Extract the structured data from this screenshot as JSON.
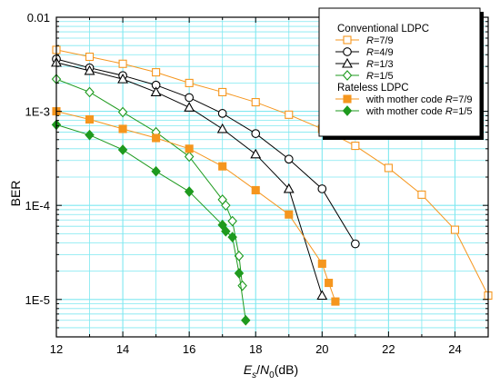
{
  "chart_data": {
    "type": "line",
    "xlabel": {
      "E": "E",
      "s": "s",
      "slash": "/",
      "N": "N",
      "zero": "0",
      "unit": "(dB)"
    },
    "ylabel": "BER",
    "xlim": [
      12,
      25
    ],
    "ylim": [
      4e-06,
      0.01
    ],
    "yscale": "log",
    "grid": true,
    "legend_position": "top-right",
    "xticks": [
      12,
      14,
      16,
      18,
      20,
      22,
      24
    ],
    "yticks": [
      {
        "value": 0.01,
        "label": "0.01"
      },
      {
        "value": 0.001,
        "label": "1E-3"
      },
      {
        "value": 0.0001,
        "label": "1E-4"
      },
      {
        "value": 1e-05,
        "label": "1E-5"
      }
    ],
    "legend_groups": [
      {
        "title": "Conventional LDPC",
        "series": [
          0,
          1,
          2,
          3
        ]
      },
      {
        "title": "Rateless LDPC",
        "series": [
          4,
          5
        ]
      }
    ],
    "series": [
      {
        "name": "R=7/9",
        "label_prefix": "",
        "label_italic": "R",
        "label_suffix": "=7/9",
        "color": "#f5961e",
        "marker": "square",
        "filled": false,
        "x": [
          12,
          13,
          14,
          15,
          16,
          17,
          18,
          19,
          20,
          21,
          22,
          23,
          24,
          25
        ],
        "y": [
          0.0045,
          0.0038,
          0.0032,
          0.0026,
          0.002,
          0.0016,
          0.00125,
          0.00092,
          0.00065,
          0.00043,
          0.00025,
          0.00013,
          5.5e-05,
          1.1e-05
        ]
      },
      {
        "name": "R=4/9",
        "label_prefix": "",
        "label_italic": "R",
        "label_suffix": "=4/9",
        "color": "#000000",
        "marker": "circle",
        "filled": false,
        "x": [
          12,
          13,
          14,
          15,
          16,
          17,
          18,
          19,
          20,
          21
        ],
        "y": [
          0.0036,
          0.0029,
          0.0024,
          0.0019,
          0.0014,
          0.00095,
          0.00058,
          0.00031,
          0.00015,
          3.9e-05
        ]
      },
      {
        "name": "R=1/3",
        "label_prefix": "",
        "label_italic": "R",
        "label_suffix": "=1/3",
        "color": "#000000",
        "marker": "triangle",
        "filled": false,
        "x": [
          12,
          13,
          14,
          15,
          16,
          17,
          18,
          19,
          20
        ],
        "y": [
          0.0033,
          0.0027,
          0.0022,
          0.0016,
          0.0011,
          0.00065,
          0.00035,
          0.00015,
          1.1e-05
        ]
      },
      {
        "name": "R=1/5",
        "label_prefix": "",
        "label_italic": "R",
        "label_suffix": "=1/5",
        "color": "#1e9a1e",
        "marker": "diamond",
        "filled": false,
        "x": [
          12,
          13,
          14,
          15,
          16,
          17,
          17.1,
          17.3,
          17.5,
          17.6
        ],
        "y": [
          0.0022,
          0.0016,
          0.00098,
          0.0006,
          0.00033,
          0.000115,
          0.0001,
          6.8e-05,
          2.9e-05,
          1.4e-05
        ]
      },
      {
        "name": "with mother code R=7/9",
        "label_prefix": "with mother code ",
        "label_italic": "R",
        "label_suffix": "=7/9",
        "color": "#f5961e",
        "marker": "square",
        "filled": true,
        "x": [
          12,
          13,
          14,
          15,
          16,
          17,
          18,
          19,
          20,
          20.2,
          20.4
        ],
        "y": [
          0.001,
          0.00082,
          0.00065,
          0.00052,
          0.0004,
          0.00026,
          0.000145,
          8e-05,
          2.4e-05,
          1.5e-05,
          9.5e-06
        ]
      },
      {
        "name": "with mother code R=1/5",
        "label_prefix": "with mother code ",
        "label_italic": "R",
        "label_suffix": "=1/5",
        "color": "#1e9a1e",
        "marker": "diamond",
        "filled": true,
        "x": [
          12,
          13,
          14,
          15,
          16,
          17,
          17.1,
          17.3,
          17.5,
          17.7
        ],
        "y": [
          0.00072,
          0.00056,
          0.00039,
          0.00023,
          0.00014,
          6.2e-05,
          5.3e-05,
          4.6e-05,
          1.9e-05,
          6e-06
        ]
      }
    ]
  }
}
